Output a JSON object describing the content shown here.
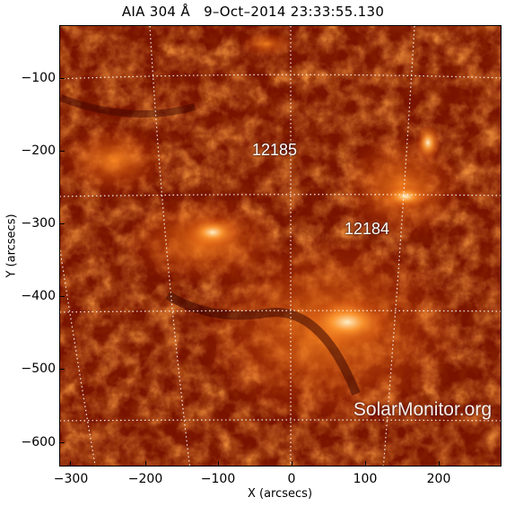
{
  "figure": {
    "title": "AIA 304 Å   9–Oct–2014 23:33:55.130",
    "x_axis_label": "X (arcsecs)",
    "y_axis_label": "Y (arcsecs)",
    "x_ticks": [
      "−300",
      "−200",
      "−100",
      "0",
      "100",
      "200"
    ],
    "y_ticks": [
      "−100",
      "−200",
      "−300",
      "−400",
      "−500",
      "−600"
    ],
    "active_regions": [
      "12185",
      "12184"
    ],
    "watermark": "SolarMonitor.org"
  },
  "colors": {
    "background_dark": "#6a0d00",
    "mid": "#b52500",
    "bright": "#f06a10",
    "hot": "#ffd6a0",
    "grid": "#ffffff"
  }
}
